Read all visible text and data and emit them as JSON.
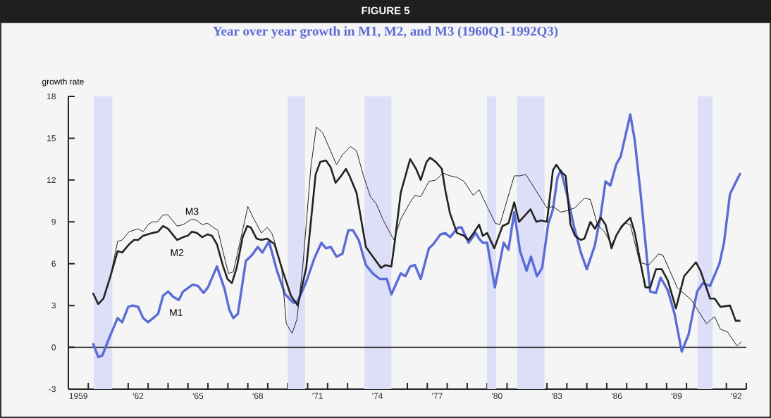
{
  "chart_data": {
    "type": "line",
    "title": "FIGURE 5",
    "subtitle": "Year over year growth in M1, M2, and M3 (1960Q1-1992Q3)",
    "ylabel": "growth rate",
    "xlim": [
      1958.5,
      1992.5
    ],
    "ylim": [
      -3,
      18
    ],
    "yticks": [
      -3,
      0,
      3,
      6,
      9,
      12,
      15,
      18
    ],
    "xticks": [
      {
        "value": 1959.5,
        "label": null
      },
      {
        "value": 1960.5,
        "label": null
      },
      {
        "value": 1961.5,
        "label": null
      },
      {
        "value": 1962.5,
        "label": null
      },
      {
        "value": 1963.5,
        "label": null
      },
      {
        "value": 1964.5,
        "label": null
      },
      {
        "value": 1965.5,
        "label": null
      },
      {
        "value": 1966.5,
        "label": null
      },
      {
        "value": 1967.5,
        "label": null
      },
      {
        "value": 1968.5,
        "label": null
      },
      {
        "value": 1969.5,
        "label": null
      },
      {
        "value": 1970.5,
        "label": null
      },
      {
        "value": 1971.5,
        "label": null
      },
      {
        "value": 1972.5,
        "label": null
      },
      {
        "value": 1973.5,
        "label": null
      },
      {
        "value": 1974.5,
        "label": null
      },
      {
        "value": 1975.5,
        "label": null
      },
      {
        "value": 1976.5,
        "label": null
      },
      {
        "value": 1977.5,
        "label": null
      },
      {
        "value": 1978.5,
        "label": null
      },
      {
        "value": 1979.5,
        "label": null
      },
      {
        "value": 1980.5,
        "label": null
      },
      {
        "value": 1981.5,
        "label": null
      },
      {
        "value": 1982.5,
        "label": null
      },
      {
        "value": 1983.5,
        "label": null
      },
      {
        "value": 1984.5,
        "label": null
      },
      {
        "value": 1985.5,
        "label": null
      },
      {
        "value": 1986.5,
        "label": null
      },
      {
        "value": 1987.5,
        "label": null
      },
      {
        "value": 1988.5,
        "label": null
      },
      {
        "value": 1989.5,
        "label": null
      },
      {
        "value": 1990.5,
        "label": null
      },
      {
        "value": 1991.5,
        "label": null
      },
      {
        "value": 1992.5,
        "label": null
      },
      {
        "value": 1959,
        "label": "1959"
      },
      {
        "value": 1962,
        "label": "'62"
      },
      {
        "value": 1965,
        "label": "'65"
      },
      {
        "value": 1968,
        "label": "'68"
      },
      {
        "value": 1971,
        "label": "'71"
      },
      {
        "value": 1974,
        "label": "'74"
      },
      {
        "value": 1977,
        "label": "'77"
      },
      {
        "value": 1980,
        "label": "'80"
      },
      {
        "value": 1983,
        "label": "'83"
      },
      {
        "value": 1986,
        "label": "'86"
      },
      {
        "value": 1989,
        "label": "'89"
      },
      {
        "value": 1992,
        "label": "'92"
      }
    ],
    "series": [
      {
        "name": "M1",
        "color": "#5b6cd6",
        "x": [
          1959.73,
          1960.0,
          1960.2,
          1960.5,
          1960.97,
          1961.2,
          1961.5,
          1961.73,
          1962.0,
          1962.25,
          1962.5,
          1963.0,
          1963.25,
          1963.5,
          1963.78,
          1964.04,
          1964.25,
          1964.74,
          1965.0,
          1965.28,
          1965.5,
          1965.95,
          1966.33,
          1966.57,
          1966.77,
          1967.0,
          1967.4,
          1967.7,
          1968.0,
          1968.23,
          1968.56,
          1968.96,
          1969.37,
          1969.78,
          1970.0,
          1970.43,
          1970.84,
          1971.19,
          1971.42,
          1971.66,
          1971.95,
          1972.24,
          1972.54,
          1972.77,
          1973.06,
          1973.42,
          1973.77,
          1974.12,
          1974.47,
          1974.7,
          1975.17,
          1975.4,
          1975.64,
          1975.88,
          1976.17,
          1976.58,
          1976.8,
          1977.16,
          1977.4,
          1977.64,
          1978.05,
          1978.22,
          1978.57,
          1978.93,
          1979.1,
          1979.28,
          1979.5,
          1979.89,
          1980.33,
          1980.57,
          1980.86,
          1981.15,
          1981.48,
          1981.7,
          1982.0,
          1982.26,
          1982.56,
          1982.8,
          1983.03,
          1983.2,
          1983.5,
          1983.85,
          1984.2,
          1984.5,
          1984.9,
          1985.2,
          1985.44,
          1985.68,
          1985.97,
          1986.2,
          1986.68,
          1986.9,
          1987.2,
          1987.44,
          1987.68,
          1987.97,
          1988.2,
          1988.56,
          1988.9,
          1989.26,
          1989.6,
          1990.03,
          1990.32,
          1990.68,
          1991.15,
          1991.38,
          1991.68,
          1992.2
        ],
        "values": [
          0.3,
          -0.7,
          -0.6,
          0.5,
          2.1,
          1.8,
          2.9,
          3.0,
          2.9,
          2.1,
          1.8,
          2.4,
          3.7,
          4.0,
          3.6,
          3.4,
          4.0,
          4.5,
          4.4,
          3.9,
          4.3,
          5.8,
          4.2,
          2.7,
          2.1,
          2.4,
          6.2,
          6.6,
          7.2,
          6.8,
          7.6,
          5.5,
          3.8,
          3.2,
          3.3,
          4.7,
          6.4,
          7.5,
          7.1,
          7.2,
          6.5,
          6.7,
          8.4,
          8.4,
          7.7,
          5.9,
          5.3,
          4.9,
          4.9,
          3.8,
          5.3,
          5.1,
          5.8,
          5.9,
          4.9,
          7.1,
          7.4,
          8.1,
          8.2,
          7.9,
          8.6,
          8.6,
          7.5,
          8.2,
          7.8,
          7.5,
          7.5,
          4.3,
          7.5,
          7.0,
          9.7,
          6.9,
          5.5,
          6.5,
          5.1,
          5.7,
          8.8,
          9.9,
          12.2,
          12.7,
          11.0,
          8.7,
          6.8,
          5.6,
          7.3,
          9.5,
          11.9,
          11.6,
          13.1,
          13.7,
          16.7,
          14.9,
          11.0,
          7.5,
          4.0,
          3.9,
          5.0,
          4.1,
          2.4,
          -0.3,
          0.9,
          4.0,
          4.6,
          4.4,
          6.0,
          7.5,
          11.0,
          12.5
        ]
      },
      {
        "name": "M2",
        "color": "#222222",
        "x": [
          1959.73,
          1960.0,
          1960.26,
          1960.61,
          1960.97,
          1961.2,
          1961.55,
          1961.79,
          1962.0,
          1962.25,
          1962.72,
          1963.0,
          1963.25,
          1963.5,
          1963.95,
          1964.25,
          1964.48,
          1964.7,
          1964.95,
          1965.2,
          1965.48,
          1965.7,
          1965.95,
          1966.24,
          1966.48,
          1966.7,
          1966.94,
          1967.24,
          1967.47,
          1967.65,
          1967.94,
          1968.18,
          1968.47,
          1968.84,
          1969.2,
          1969.66,
          1970.0,
          1970.43,
          1970.9,
          1971.13,
          1971.42,
          1971.66,
          1971.9,
          1972.18,
          1972.42,
          1972.6,
          1972.95,
          1973.42,
          1973.77,
          1974.18,
          1974.4,
          1974.7,
          1974.88,
          1975.17,
          1975.64,
          1975.94,
          1976.17,
          1976.46,
          1976.64,
          1976.93,
          1977.23,
          1977.4,
          1977.64,
          1977.99,
          1978.34,
          1978.57,
          1978.87,
          1979.1,
          1979.28,
          1979.5,
          1979.86,
          1980.27,
          1980.57,
          1980.86,
          1981.1,
          1981.68,
          1981.97,
          1982.2,
          1982.5,
          1982.8,
          1982.97,
          1983.2,
          1983.44,
          1983.68,
          1983.91,
          1984.2,
          1984.38,
          1984.68,
          1984.91,
          1985.2,
          1985.44,
          1985.74,
          1985.97,
          1986.26,
          1986.68,
          1986.91,
          1987.2,
          1987.44,
          1987.68,
          1987.97,
          1988.26,
          1988.56,
          1988.97,
          1989.38,
          1989.97,
          1990.2,
          1990.68,
          1990.91,
          1991.2,
          1991.68,
          1991.97,
          1992.2
        ],
        "values": [
          3.9,
          3.1,
          3.5,
          5.1,
          6.9,
          6.8,
          7.4,
          7.7,
          7.7,
          8.0,
          8.2,
          8.3,
          8.7,
          8.5,
          7.7,
          7.9,
          8.0,
          8.3,
          8.2,
          7.9,
          8.1,
          8.0,
          7.4,
          5.9,
          4.9,
          4.6,
          5.7,
          7.9,
          8.7,
          8.6,
          7.8,
          7.7,
          7.8,
          7.4,
          5.7,
          3.7,
          3.0,
          5.7,
          12.4,
          13.3,
          13.4,
          12.9,
          11.8,
          12.3,
          12.8,
          12.3,
          11.1,
          7.2,
          6.5,
          5.7,
          5.9,
          5.8,
          7.7,
          11.1,
          13.5,
          12.8,
          12.0,
          13.3,
          13.6,
          13.3,
          12.8,
          11.3,
          9.6,
          8.2,
          8.0,
          7.7,
          8.3,
          8.8,
          8.0,
          8.2,
          7.1,
          8.7,
          8.9,
          10.4,
          9.0,
          9.9,
          9.0,
          9.1,
          9.0,
          12.7,
          13.1,
          12.6,
          12.3,
          8.8,
          8.0,
          7.7,
          7.8,
          9.0,
          8.5,
          9.3,
          8.8,
          7.1,
          8.0,
          8.7,
          9.3,
          8.2,
          6.0,
          4.3,
          4.3,
          5.6,
          5.6,
          4.8,
          2.8,
          5.1,
          6.1,
          5.5,
          3.5,
          3.5,
          2.9,
          3.0,
          1.9,
          1.9
        ]
      },
      {
        "name": "M3",
        "color": "#222222",
        "x": [
          1959.73,
          1960.0,
          1960.26,
          1960.61,
          1960.97,
          1961.2,
          1961.55,
          1962.0,
          1962.25,
          1962.5,
          1962.72,
          1962.96,
          1963.25,
          1963.5,
          1963.95,
          1964.25,
          1964.7,
          1964.95,
          1965.2,
          1965.48,
          1965.77,
          1966.0,
          1966.3,
          1966.53,
          1966.77,
          1967.24,
          1967.5,
          1967.77,
          1968.18,
          1968.47,
          1968.7,
          1968.84,
          1969.2,
          1969.43,
          1969.72,
          1969.96,
          1970.25,
          1970.66,
          1970.93,
          1971.25,
          1971.95,
          1972.24,
          1972.65,
          1972.95,
          1973.3,
          1973.65,
          1973.94,
          1974.3,
          1974.82,
          1975.17,
          1975.64,
          1975.88,
          1976.17,
          1976.58,
          1976.93,
          1977.28,
          1977.64,
          1977.99,
          1978.34,
          1978.8,
          1979.1,
          1979.5,
          1979.91,
          1980.14,
          1980.86,
          1981.15,
          1981.44,
          1982.5,
          1982.8,
          1983.2,
          1983.5,
          1983.9,
          1984.38,
          1984.68,
          1985.03,
          1985.38,
          1985.74,
          1986.1,
          1986.44,
          1986.68,
          1987.15,
          1987.6,
          1988.1,
          1988.32,
          1989.03,
          1989.74,
          1990.5,
          1990.91,
          1991.2,
          1991.56,
          1992.03,
          1992.26
        ],
        "values": [
          3.9,
          3.1,
          3.5,
          5.1,
          7.6,
          7.7,
          8.3,
          8.5,
          8.3,
          8.8,
          9.0,
          9.0,
          9.5,
          9.5,
          8.7,
          8.8,
          9.2,
          9.1,
          8.8,
          8.9,
          8.6,
          8.4,
          6.6,
          5.3,
          5.4,
          8.4,
          10.1,
          9.3,
          8.2,
          8.6,
          8.2,
          7.6,
          5.6,
          1.7,
          1.0,
          2.0,
          5.7,
          12.9,
          15.8,
          15.4,
          13.1,
          13.8,
          14.4,
          14.1,
          12.3,
          10.8,
          10.3,
          9.1,
          7.7,
          9.2,
          10.4,
          10.9,
          10.8,
          11.9,
          12.0,
          12.5,
          12.3,
          12.2,
          11.9,
          10.9,
          11.3,
          10.1,
          8.9,
          8.8,
          12.3,
          12.3,
          12.4,
          10.0,
          10.1,
          9.7,
          9.8,
          10.0,
          10.7,
          10.6,
          8.8,
          8.3,
          7.4,
          8.3,
          8.9,
          8.8,
          6.1,
          5.9,
          6.7,
          6.6,
          4.3,
          3.4,
          1.7,
          2.2,
          1.3,
          1.1,
          0.1,
          0.4
        ]
      }
    ],
    "bands": [
      {
        "axis": "x",
        "from": 1959.77,
        "to": 1960.7,
        "color": "#dcdff7"
      },
      {
        "axis": "x",
        "from": 1969.5,
        "to": 1970.37,
        "color": "#dcdff7"
      },
      {
        "axis": "x",
        "from": 1973.35,
        "to": 1974.7,
        "color": "#dcdff7"
      },
      {
        "axis": "x",
        "from": 1979.5,
        "to": 1979.95,
        "color": "#dcdff7"
      },
      {
        "axis": "x",
        "from": 1981.0,
        "to": 1982.38,
        "color": "#dcdff7"
      },
      {
        "axis": "x",
        "from": 1990.05,
        "to": 1990.8,
        "color": "#dcdff7"
      }
    ],
    "ref_lines": [
      {
        "axis": "y",
        "value": 0,
        "color": "#111111"
      }
    ],
    "legend": false,
    "grid": false,
    "marker": "none",
    "line_style": "solid"
  }
}
